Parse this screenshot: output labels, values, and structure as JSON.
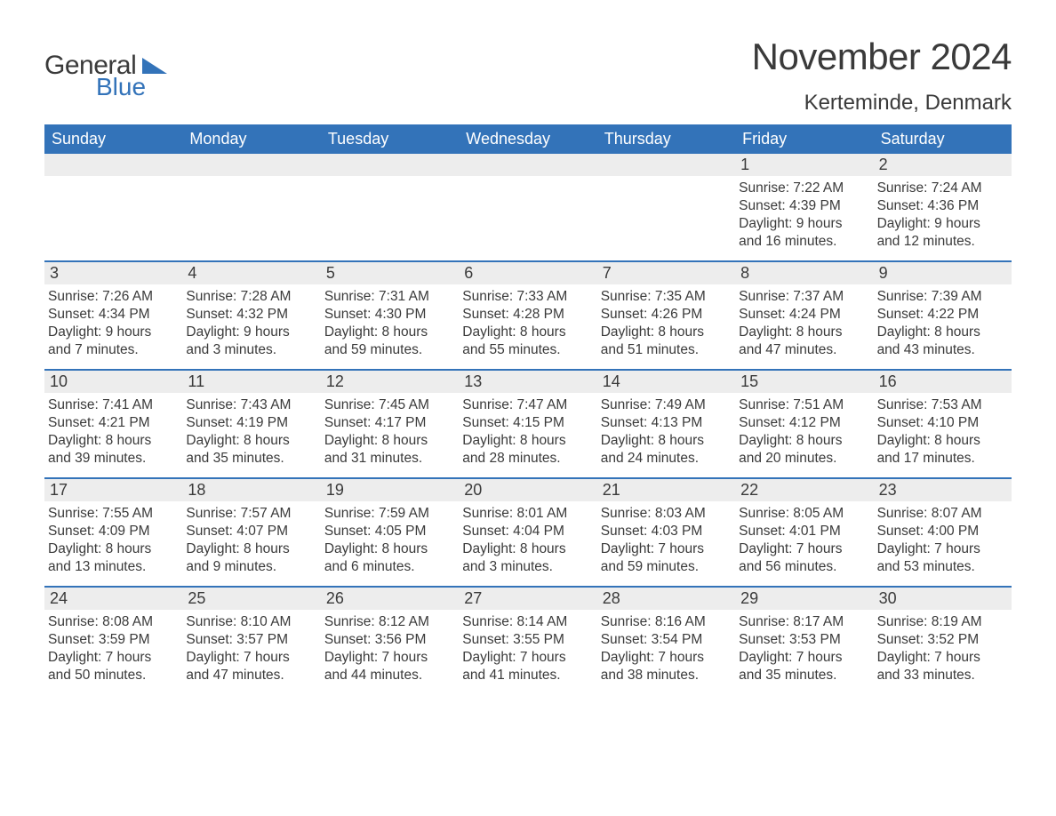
{
  "brand": {
    "general": "General",
    "blue": "Blue",
    "accent_color": "#3373b9",
    "text_color": "#3a3a3a"
  },
  "title": {
    "month": "November 2024",
    "location": "Kerteminde, Denmark"
  },
  "calendar": {
    "header_bg": "#3373b9",
    "header_fg": "#ffffff",
    "daynum_bg": "#ededed",
    "border_color": "#3373b9",
    "weekdays": [
      "Sunday",
      "Monday",
      "Tuesday",
      "Wednesday",
      "Thursday",
      "Friday",
      "Saturday"
    ],
    "weeks": [
      [
        null,
        null,
        null,
        null,
        null,
        {
          "n": "1",
          "sunrise": "Sunrise: 7:22 AM",
          "sunset": "Sunset: 4:39 PM",
          "dl1": "Daylight: 9 hours",
          "dl2": "and 16 minutes."
        },
        {
          "n": "2",
          "sunrise": "Sunrise: 7:24 AM",
          "sunset": "Sunset: 4:36 PM",
          "dl1": "Daylight: 9 hours",
          "dl2": "and 12 minutes."
        }
      ],
      [
        {
          "n": "3",
          "sunrise": "Sunrise: 7:26 AM",
          "sunset": "Sunset: 4:34 PM",
          "dl1": "Daylight: 9 hours",
          "dl2": "and 7 minutes."
        },
        {
          "n": "4",
          "sunrise": "Sunrise: 7:28 AM",
          "sunset": "Sunset: 4:32 PM",
          "dl1": "Daylight: 9 hours",
          "dl2": "and 3 minutes."
        },
        {
          "n": "5",
          "sunrise": "Sunrise: 7:31 AM",
          "sunset": "Sunset: 4:30 PM",
          "dl1": "Daylight: 8 hours",
          "dl2": "and 59 minutes."
        },
        {
          "n": "6",
          "sunrise": "Sunrise: 7:33 AM",
          "sunset": "Sunset: 4:28 PM",
          "dl1": "Daylight: 8 hours",
          "dl2": "and 55 minutes."
        },
        {
          "n": "7",
          "sunrise": "Sunrise: 7:35 AM",
          "sunset": "Sunset: 4:26 PM",
          "dl1": "Daylight: 8 hours",
          "dl2": "and 51 minutes."
        },
        {
          "n": "8",
          "sunrise": "Sunrise: 7:37 AM",
          "sunset": "Sunset: 4:24 PM",
          "dl1": "Daylight: 8 hours",
          "dl2": "and 47 minutes."
        },
        {
          "n": "9",
          "sunrise": "Sunrise: 7:39 AM",
          "sunset": "Sunset: 4:22 PM",
          "dl1": "Daylight: 8 hours",
          "dl2": "and 43 minutes."
        }
      ],
      [
        {
          "n": "10",
          "sunrise": "Sunrise: 7:41 AM",
          "sunset": "Sunset: 4:21 PM",
          "dl1": "Daylight: 8 hours",
          "dl2": "and 39 minutes."
        },
        {
          "n": "11",
          "sunrise": "Sunrise: 7:43 AM",
          "sunset": "Sunset: 4:19 PM",
          "dl1": "Daylight: 8 hours",
          "dl2": "and 35 minutes."
        },
        {
          "n": "12",
          "sunrise": "Sunrise: 7:45 AM",
          "sunset": "Sunset: 4:17 PM",
          "dl1": "Daylight: 8 hours",
          "dl2": "and 31 minutes."
        },
        {
          "n": "13",
          "sunrise": "Sunrise: 7:47 AM",
          "sunset": "Sunset: 4:15 PM",
          "dl1": "Daylight: 8 hours",
          "dl2": "and 28 minutes."
        },
        {
          "n": "14",
          "sunrise": "Sunrise: 7:49 AM",
          "sunset": "Sunset: 4:13 PM",
          "dl1": "Daylight: 8 hours",
          "dl2": "and 24 minutes."
        },
        {
          "n": "15",
          "sunrise": "Sunrise: 7:51 AM",
          "sunset": "Sunset: 4:12 PM",
          "dl1": "Daylight: 8 hours",
          "dl2": "and 20 minutes."
        },
        {
          "n": "16",
          "sunrise": "Sunrise: 7:53 AM",
          "sunset": "Sunset: 4:10 PM",
          "dl1": "Daylight: 8 hours",
          "dl2": "and 17 minutes."
        }
      ],
      [
        {
          "n": "17",
          "sunrise": "Sunrise: 7:55 AM",
          "sunset": "Sunset: 4:09 PM",
          "dl1": "Daylight: 8 hours",
          "dl2": "and 13 minutes."
        },
        {
          "n": "18",
          "sunrise": "Sunrise: 7:57 AM",
          "sunset": "Sunset: 4:07 PM",
          "dl1": "Daylight: 8 hours",
          "dl2": "and 9 minutes."
        },
        {
          "n": "19",
          "sunrise": "Sunrise: 7:59 AM",
          "sunset": "Sunset: 4:05 PM",
          "dl1": "Daylight: 8 hours",
          "dl2": "and 6 minutes."
        },
        {
          "n": "20",
          "sunrise": "Sunrise: 8:01 AM",
          "sunset": "Sunset: 4:04 PM",
          "dl1": "Daylight: 8 hours",
          "dl2": "and 3 minutes."
        },
        {
          "n": "21",
          "sunrise": "Sunrise: 8:03 AM",
          "sunset": "Sunset: 4:03 PM",
          "dl1": "Daylight: 7 hours",
          "dl2": "and 59 minutes."
        },
        {
          "n": "22",
          "sunrise": "Sunrise: 8:05 AM",
          "sunset": "Sunset: 4:01 PM",
          "dl1": "Daylight: 7 hours",
          "dl2": "and 56 minutes."
        },
        {
          "n": "23",
          "sunrise": "Sunrise: 8:07 AM",
          "sunset": "Sunset: 4:00 PM",
          "dl1": "Daylight: 7 hours",
          "dl2": "and 53 minutes."
        }
      ],
      [
        {
          "n": "24",
          "sunrise": "Sunrise: 8:08 AM",
          "sunset": "Sunset: 3:59 PM",
          "dl1": "Daylight: 7 hours",
          "dl2": "and 50 minutes."
        },
        {
          "n": "25",
          "sunrise": "Sunrise: 8:10 AM",
          "sunset": "Sunset: 3:57 PM",
          "dl1": "Daylight: 7 hours",
          "dl2": "and 47 minutes."
        },
        {
          "n": "26",
          "sunrise": "Sunrise: 8:12 AM",
          "sunset": "Sunset: 3:56 PM",
          "dl1": "Daylight: 7 hours",
          "dl2": "and 44 minutes."
        },
        {
          "n": "27",
          "sunrise": "Sunrise: 8:14 AM",
          "sunset": "Sunset: 3:55 PM",
          "dl1": "Daylight: 7 hours",
          "dl2": "and 41 minutes."
        },
        {
          "n": "28",
          "sunrise": "Sunrise: 8:16 AM",
          "sunset": "Sunset: 3:54 PM",
          "dl1": "Daylight: 7 hours",
          "dl2": "and 38 minutes."
        },
        {
          "n": "29",
          "sunrise": "Sunrise: 8:17 AM",
          "sunset": "Sunset: 3:53 PM",
          "dl1": "Daylight: 7 hours",
          "dl2": "and 35 minutes."
        },
        {
          "n": "30",
          "sunrise": "Sunrise: 8:19 AM",
          "sunset": "Sunset: 3:52 PM",
          "dl1": "Daylight: 7 hours",
          "dl2": "and 33 minutes."
        }
      ]
    ]
  }
}
